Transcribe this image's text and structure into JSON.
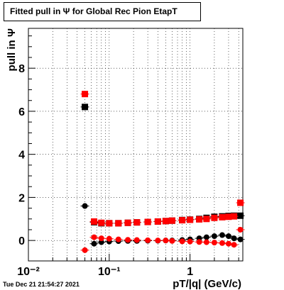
{
  "title": "Fitted pull in  Ψ  for Global Rec Pion EtapT",
  "timestamp": "Tue Dec 21 21:54:27 2021",
  "chart_data": {
    "type": "scatter",
    "title": "Fitted pull in  Ψ  for Global Rec Pion EtapT",
    "xlabel": "pT/|q| (GeV/c)",
    "ylabel": "pull in  Ψ",
    "xscale": "log",
    "xlim": [
      0.01,
      4.5
    ],
    "ylim": [
      -0.95,
      9.85
    ],
    "grid": true,
    "xticks": [
      {
        "value": 0.01,
        "label": "10⁻²"
      },
      {
        "value": 0.1,
        "label": "10⁻¹"
      },
      {
        "value": 1,
        "label": "1"
      }
    ],
    "yticks": [
      {
        "value": 0,
        "label": "0"
      },
      {
        "value": 2,
        "label": "2"
      },
      {
        "value": 4,
        "label": "4"
      },
      {
        "value": 6,
        "label": "6"
      },
      {
        "value": 8,
        "label": "8"
      }
    ],
    "series": [
      {
        "color": "#000000",
        "marker": "square",
        "x": [
          0.05,
          0.065,
          0.08,
          0.1,
          0.13,
          0.17,
          0.22,
          0.3,
          0.4,
          0.5,
          0.6,
          0.8,
          1.0,
          1.3,
          1.6,
          2.0,
          2.5,
          3.0,
          3.5,
          4.2
        ],
        "y": [
          6.2,
          0.85,
          0.8,
          0.8,
          0.8,
          0.82,
          0.84,
          0.86,
          0.88,
          0.9,
          0.92,
          0.95,
          0.97,
          1.0,
          1.05,
          1.1,
          1.12,
          1.14,
          1.15,
          1.15
        ]
      },
      {
        "color": "#ff0000",
        "marker": "square",
        "x": [
          0.05,
          0.065,
          0.08,
          0.1,
          0.13,
          0.17,
          0.22,
          0.3,
          0.4,
          0.5,
          0.6,
          0.8,
          1.0,
          1.3,
          1.6,
          2.0,
          2.5,
          3.0,
          3.5,
          4.2
        ],
        "y": [
          6.8,
          0.88,
          0.82,
          0.8,
          0.8,
          0.82,
          0.84,
          0.86,
          0.88,
          0.9,
          0.92,
          0.94,
          0.96,
          0.98,
          1.0,
          1.05,
          1.08,
          1.1,
          1.12,
          1.75
        ]
      },
      {
        "color": "#000000",
        "marker": "circle",
        "x": [
          0.05,
          0.065,
          0.08,
          0.1,
          0.13,
          0.17,
          0.22,
          0.3,
          0.4,
          0.5,
          0.6,
          0.8,
          1.0,
          1.3,
          1.6,
          2.0,
          2.5,
          3.0,
          3.5,
          4.2
        ],
        "y": [
          1.6,
          -0.15,
          -0.08,
          -0.05,
          -0.03,
          -0.02,
          -0.02,
          -0.01,
          -0.01,
          0.0,
          0.0,
          0.02,
          0.05,
          0.1,
          0.15,
          0.2,
          0.25,
          0.2,
          0.1,
          0.05
        ]
      },
      {
        "color": "#ff0000",
        "marker": "circle",
        "x": [
          0.05,
          0.065,
          0.08,
          0.1,
          0.13,
          0.17,
          0.22,
          0.3,
          0.4,
          0.5,
          0.6,
          0.8,
          1.0,
          1.3,
          1.6,
          2.0,
          2.5,
          3.0,
          3.5,
          4.2
        ],
        "y": [
          -0.45,
          0.15,
          0.1,
          0.08,
          0.05,
          0.03,
          0.02,
          0.01,
          0.0,
          0.0,
          -0.02,
          -0.04,
          -0.05,
          -0.07,
          -0.08,
          -0.1,
          -0.12,
          -0.15,
          -0.2,
          0.5
        ]
      }
    ]
  }
}
